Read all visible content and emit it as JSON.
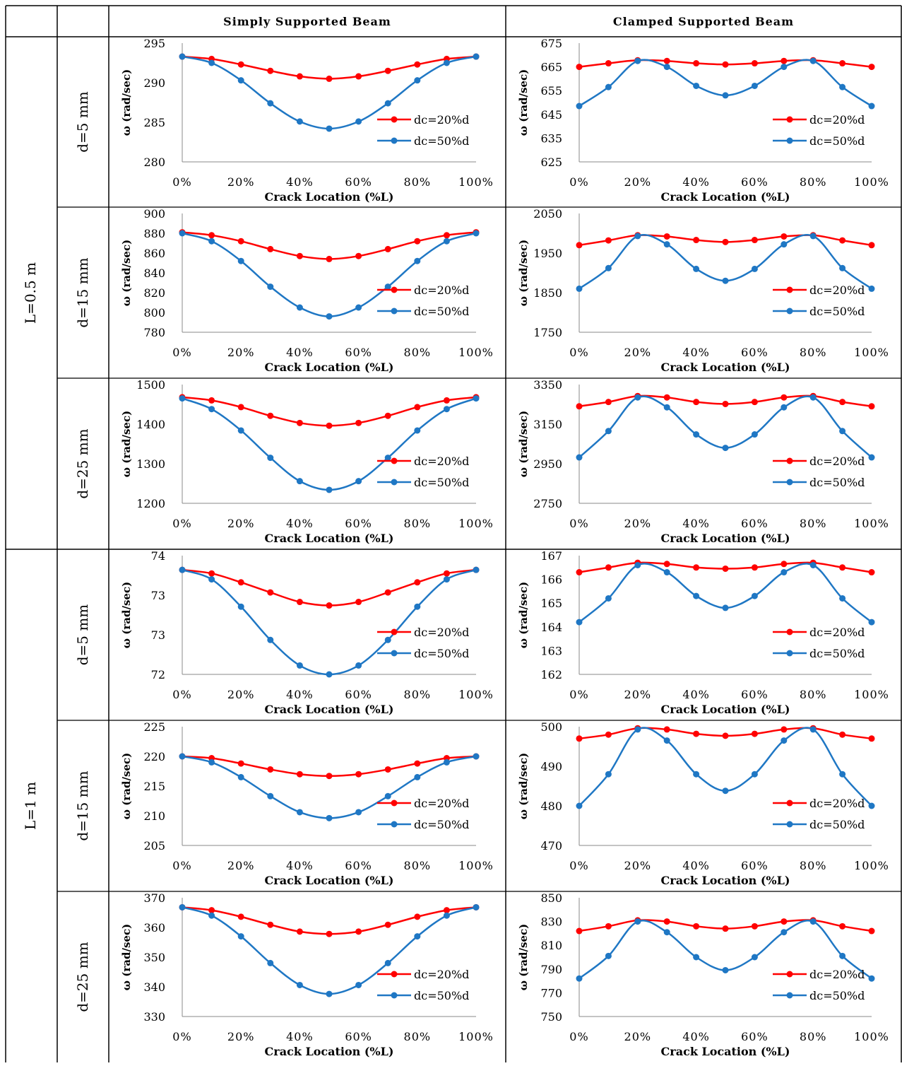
{
  "header": {
    "simply": "Simply Supported Beam",
    "clamped": "Clamped Supported Beam"
  },
  "lengths": [
    "L=0.5 m",
    "L=1 m"
  ],
  "depths": [
    "d=5 mm",
    "d=15 mm",
    "d=25 mm",
    "d=5 mm",
    "d=15 mm",
    "d=25 mm"
  ],
  "axis": {
    "xlabel": "Crack Location (%L)",
    "ylabel": "ω (rad/sec)"
  },
  "legend": {
    "s1": "dc=20%d",
    "s2": "dc=50%d"
  },
  "colors": {
    "s1": "#ff0000",
    "s2": "#1f77c4"
  },
  "chart_data": [
    {
      "type": "line",
      "beam": "Simply Supported Beam",
      "L": "L=0.5 m",
      "d": "d=5 mm",
      "x": [
        "0%",
        "10%",
        "20%",
        "30%",
        "40%",
        "50%",
        "60%",
        "70%",
        "80%",
        "90%",
        "100%"
      ],
      "xticks": [
        "0%",
        "20%",
        "40%",
        "60%",
        "80%",
        "100%"
      ],
      "ylim": [
        280,
        295
      ],
      "yticks": [
        "280",
        "285",
        "290",
        "295"
      ],
      "series": [
        {
          "name": "dc=20%d",
          "values": [
            293.3,
            293.0,
            292.3,
            291.5,
            290.8,
            290.5,
            290.8,
            291.5,
            292.3,
            293.0,
            293.3
          ]
        },
        {
          "name": "dc=50%d",
          "values": [
            293.3,
            292.5,
            290.3,
            287.4,
            285.1,
            284.2,
            285.1,
            287.4,
            290.3,
            292.5,
            293.3
          ]
        }
      ]
    },
    {
      "type": "line",
      "beam": "Clamped Supported Beam",
      "L": "L=0.5 m",
      "d": "d=5 mm",
      "x": [
        "0%",
        "10%",
        "20%",
        "30%",
        "40%",
        "50%",
        "60%",
        "70%",
        "80%",
        "90%",
        "100%"
      ],
      "xticks": [
        "0%",
        "20%",
        "40%",
        "60%",
        "80%",
        "100%"
      ],
      "ylim": [
        625,
        675
      ],
      "yticks": [
        "625",
        "635",
        "645",
        "655",
        "665",
        "675"
      ],
      "series": [
        {
          "name": "dc=20%d",
          "values": [
            665.0,
            666.5,
            667.8,
            667.5,
            666.5,
            666.0,
            666.5,
            667.5,
            667.8,
            666.5,
            665.0
          ]
        },
        {
          "name": "dc=50%d",
          "values": [
            648.5,
            656.5,
            667.5,
            665.0,
            657.0,
            653.0,
            657.0,
            665.0,
            667.5,
            656.5,
            648.5
          ]
        }
      ]
    },
    {
      "type": "line",
      "beam": "Simply Supported Beam",
      "L": "L=0.5 m",
      "d": "d=15 mm",
      "x": [
        "0%",
        "10%",
        "20%",
        "30%",
        "40%",
        "50%",
        "60%",
        "70%",
        "80%",
        "90%",
        "100%"
      ],
      "xticks": [
        "0%",
        "20%",
        "40%",
        "60%",
        "80%",
        "100%"
      ],
      "ylim": [
        780,
        900
      ],
      "yticks": [
        "780",
        "800",
        "820",
        "840",
        "860",
        "880",
        "900"
      ],
      "series": [
        {
          "name": "dc=20%d",
          "values": [
            881,
            878,
            872,
            864,
            857,
            854,
            857,
            864,
            872,
            878,
            881
          ]
        },
        {
          "name": "dc=50%d",
          "values": [
            880,
            872,
            852,
            826,
            805,
            796,
            805,
            826,
            852,
            872,
            880
          ]
        }
      ]
    },
    {
      "type": "line",
      "beam": "Clamped Supported Beam",
      "L": "L=0.5 m",
      "d": "d=15 mm",
      "x": [
        "0%",
        "10%",
        "20%",
        "30%",
        "40%",
        "50%",
        "60%",
        "70%",
        "80%",
        "90%",
        "100%"
      ],
      "xticks": [
        "0%",
        "20%",
        "40%",
        "60%",
        "80%",
        "100%"
      ],
      "ylim": [
        1750,
        2050
      ],
      "yticks": [
        "1750",
        "1850",
        "1950",
        "2050"
      ],
      "series": [
        {
          "name": "dc=20%d",
          "values": [
            1970,
            1982,
            1995,
            1992,
            1983,
            1978,
            1983,
            1992,
            1995,
            1982,
            1970
          ]
        },
        {
          "name": "dc=50%d",
          "values": [
            1860,
            1912,
            1993,
            1972,
            1910,
            1880,
            1910,
            1972,
            1993,
            1912,
            1860
          ]
        }
      ]
    },
    {
      "type": "line",
      "beam": "Simply Supported Beam",
      "L": "L=0.5 m",
      "d": "d=25 mm",
      "x": [
        "0%",
        "10%",
        "20%",
        "30%",
        "40%",
        "50%",
        "60%",
        "70%",
        "80%",
        "90%",
        "100%"
      ],
      "xticks": [
        "0%",
        "20%",
        "40%",
        "60%",
        "80%",
        "100%"
      ],
      "ylim": [
        1200,
        1500
      ],
      "yticks": [
        "1200",
        "1300",
        "1400",
        "1500"
      ],
      "series": [
        {
          "name": "dc=20%d",
          "values": [
            1468,
            1460,
            1443,
            1421,
            1403,
            1396,
            1403,
            1421,
            1443,
            1460,
            1468
          ]
        },
        {
          "name": "dc=50%d",
          "values": [
            1465,
            1438,
            1384,
            1315,
            1256,
            1234,
            1256,
            1315,
            1384,
            1438,
            1465
          ]
        }
      ]
    },
    {
      "type": "line",
      "beam": "Clamped Supported Beam",
      "L": "L=0.5 m",
      "d": "d=25 mm",
      "x": [
        "0%",
        "10%",
        "20%",
        "30%",
        "40%",
        "50%",
        "60%",
        "70%",
        "80%",
        "90%",
        "100%"
      ],
      "xticks": [
        "0%",
        "20%",
        "40%",
        "60%",
        "80%",
        "100%"
      ],
      "ylim": [
        2750,
        3350
      ],
      "yticks": [
        "2750",
        "2950",
        "3150",
        "3350"
      ],
      "series": [
        {
          "name": "dc=20%d",
          "values": [
            3240,
            3262,
            3292,
            3285,
            3262,
            3252,
            3262,
            3285,
            3292,
            3262,
            3240
          ]
        },
        {
          "name": "dc=50%d",
          "values": [
            2982,
            3115,
            3285,
            3235,
            3098,
            3030,
            3098,
            3235,
            3285,
            3115,
            2982
          ]
        }
      ]
    },
    {
      "type": "line",
      "beam": "Simply Supported Beam",
      "L": "L=1 m",
      "d": "d=5 mm",
      "x": [
        "0%",
        "10%",
        "20%",
        "30%",
        "40%",
        "50%",
        "60%",
        "70%",
        "80%",
        "90%",
        "100%"
      ],
      "xticks": [
        "0%",
        "20%",
        "40%",
        "60%",
        "80%",
        "100%"
      ],
      "ylim": [
        72,
        74
      ],
      "yticks": [
        "72",
        "73",
        "73",
        "74"
      ],
      "series": [
        {
          "name": "dc=20%d",
          "values": [
            73.76,
            73.7,
            73.55,
            73.38,
            73.22,
            73.16,
            73.22,
            73.38,
            73.55,
            73.7,
            73.76
          ]
        },
        {
          "name": "dc=50%d",
          "values": [
            73.76,
            73.6,
            73.14,
            72.58,
            72.15,
            72.0,
            72.15,
            72.58,
            73.14,
            73.6,
            73.76
          ]
        }
      ]
    },
    {
      "type": "line",
      "beam": "Clamped Supported Beam",
      "L": "L=1 m",
      "d": "d=5 mm",
      "x": [
        "0%",
        "10%",
        "20%",
        "30%",
        "40%",
        "50%",
        "60%",
        "70%",
        "80%",
        "90%",
        "100%"
      ],
      "xticks": [
        "0%",
        "20%",
        "40%",
        "60%",
        "80%",
        "100%"
      ],
      "ylim": [
        162,
        167
      ],
      "yticks": [
        "162",
        "163",
        "164",
        "165",
        "166",
        "167"
      ],
      "series": [
        {
          "name": "dc=20%d",
          "values": [
            166.3,
            166.5,
            166.7,
            166.65,
            166.5,
            166.45,
            166.5,
            166.65,
            166.7,
            166.5,
            166.3
          ]
        },
        {
          "name": "dc=50%d",
          "values": [
            164.2,
            165.2,
            166.6,
            166.3,
            165.3,
            164.8,
            165.3,
            166.3,
            166.6,
            165.2,
            164.2
          ]
        }
      ]
    },
    {
      "type": "line",
      "beam": "Simply Supported Beam",
      "L": "L=1 m",
      "d": "d=15 mm",
      "x": [
        "0%",
        "10%",
        "20%",
        "30%",
        "40%",
        "50%",
        "60%",
        "70%",
        "80%",
        "90%",
        "100%"
      ],
      "xticks": [
        "0%",
        "20%",
        "40%",
        "60%",
        "80%",
        "100%"
      ],
      "ylim": [
        205,
        225
      ],
      "yticks": [
        "205",
        "210",
        "215",
        "220",
        "225"
      ],
      "series": [
        {
          "name": "dc=20%d",
          "values": [
            220.0,
            219.7,
            218.8,
            217.8,
            217.0,
            216.7,
            217.0,
            217.8,
            218.8,
            219.7,
            220.0
          ]
        },
        {
          "name": "dc=50%d",
          "values": [
            220.0,
            219.0,
            216.5,
            213.3,
            210.6,
            209.6,
            210.6,
            213.3,
            216.5,
            219.0,
            220.0
          ]
        }
      ]
    },
    {
      "type": "line",
      "beam": "Clamped Supported Beam",
      "L": "L=1 m",
      "d": "d=15 mm",
      "x": [
        "0%",
        "10%",
        "20%",
        "30%",
        "40%",
        "50%",
        "60%",
        "70%",
        "80%",
        "90%",
        "100%"
      ],
      "xticks": [
        "0%",
        "20%",
        "40%",
        "60%",
        "80%",
        "100%"
      ],
      "ylim": [
        470,
        500
      ],
      "yticks": [
        "470",
        "480",
        "490",
        "500"
      ],
      "series": [
        {
          "name": "dc=20%d",
          "values": [
            497.0,
            498.0,
            499.6,
            499.3,
            498.2,
            497.7,
            498.2,
            499.3,
            499.6,
            498.0,
            497.0
          ]
        },
        {
          "name": "dc=50%d",
          "values": [
            480.0,
            488.0,
            499.3,
            496.5,
            488.0,
            483.8,
            488.0,
            496.5,
            499.3,
            488.0,
            480.0
          ]
        }
      ]
    },
    {
      "type": "line",
      "beam": "Simply Supported Beam",
      "L": "L=1 m",
      "d": "d=25 mm",
      "x": [
        "0%",
        "10%",
        "20%",
        "30%",
        "40%",
        "50%",
        "60%",
        "70%",
        "80%",
        "90%",
        "100%"
      ],
      "xticks": [
        "0%",
        "20%",
        "40%",
        "60%",
        "80%",
        "100%"
      ],
      "ylim": [
        330,
        370
      ],
      "yticks": [
        "330",
        "340",
        "350",
        "360",
        "370"
      ],
      "series": [
        {
          "name": "dc=20%d",
          "values": [
            366.8,
            365.8,
            363.6,
            360.9,
            358.6,
            357.8,
            358.6,
            360.9,
            363.6,
            365.8,
            366.8
          ]
        },
        {
          "name": "dc=50%d",
          "values": [
            366.8,
            364.0,
            357.0,
            348.0,
            340.6,
            337.6,
            340.6,
            348.0,
            357.0,
            364.0,
            366.8
          ]
        }
      ]
    },
    {
      "type": "line",
      "beam": "Clamped Supported Beam",
      "L": "L=1 m",
      "d": "d=25 mm",
      "x": [
        "0%",
        "10%",
        "20%",
        "30%",
        "40%",
        "50%",
        "60%",
        "70%",
        "80%",
        "90%",
        "100%"
      ],
      "xticks": [
        "0%",
        "20%",
        "40%",
        "60%",
        "80%",
        "100%"
      ],
      "ylim": [
        750,
        850
      ],
      "yticks": [
        "750",
        "770",
        "790",
        "810",
        "830",
        "850"
      ],
      "series": [
        {
          "name": "dc=20%d",
          "values": [
            822,
            826,
            831,
            830,
            826,
            824,
            826,
            830,
            831,
            826,
            822
          ]
        },
        {
          "name": "dc=50%d",
          "values": [
            782,
            801,
            830,
            821,
            800,
            789,
            800,
            821,
            830,
            801,
            782
          ]
        }
      ]
    }
  ]
}
